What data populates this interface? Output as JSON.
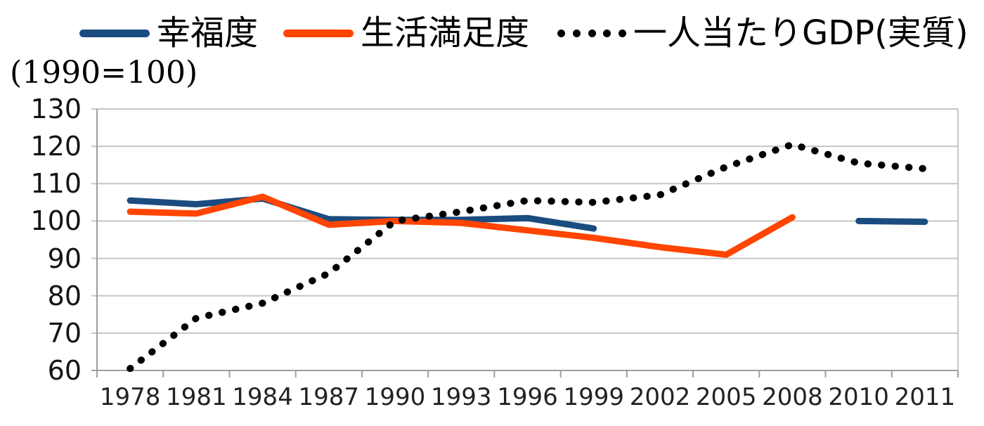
{
  "axis_note": "(1990=100)",
  "chart_data": {
    "type": "line",
    "title": "",
    "ylabel": "(1990=100)",
    "xlabel": "",
    "ylim": [
      60,
      130
    ],
    "yticks": [
      60,
      70,
      80,
      90,
      100,
      110,
      120,
      130
    ],
    "grid": "horizontal",
    "legend_position": "top",
    "grid_color": "#C6C6C6",
    "axis_color": "#9E9E9E",
    "label_color": "#141414",
    "categories": [
      "1978",
      "1981",
      "1984",
      "1987",
      "1990",
      "1993",
      "1996",
      "1999",
      "2002",
      "2005",
      "2008",
      "2010",
      "2011"
    ],
    "series": [
      {
        "name": "幸福度",
        "color": "#1B4C80",
        "style": "solid",
        "values": [
          105.5,
          104.5,
          106,
          100.5,
          100.3,
          100.3,
          100.8,
          98,
          null,
          null,
          null,
          100,
          99.8
        ]
      },
      {
        "name": "生活満足度",
        "color": "#FF4500",
        "style": "solid",
        "values": [
          102.5,
          102,
          106.5,
          99,
          100,
          99.5,
          97.5,
          95.5,
          93,
          91,
          101,
          null,
          null
        ]
      },
      {
        "name": "一人当たりGDP(実質)",
        "color": "#000000",
        "style": "dotted",
        "values": [
          60.5,
          74,
          78,
          86,
          100,
          102.5,
          105.5,
          105,
          107,
          114.5,
          120.5,
          115.5,
          114
        ]
      }
    ]
  }
}
